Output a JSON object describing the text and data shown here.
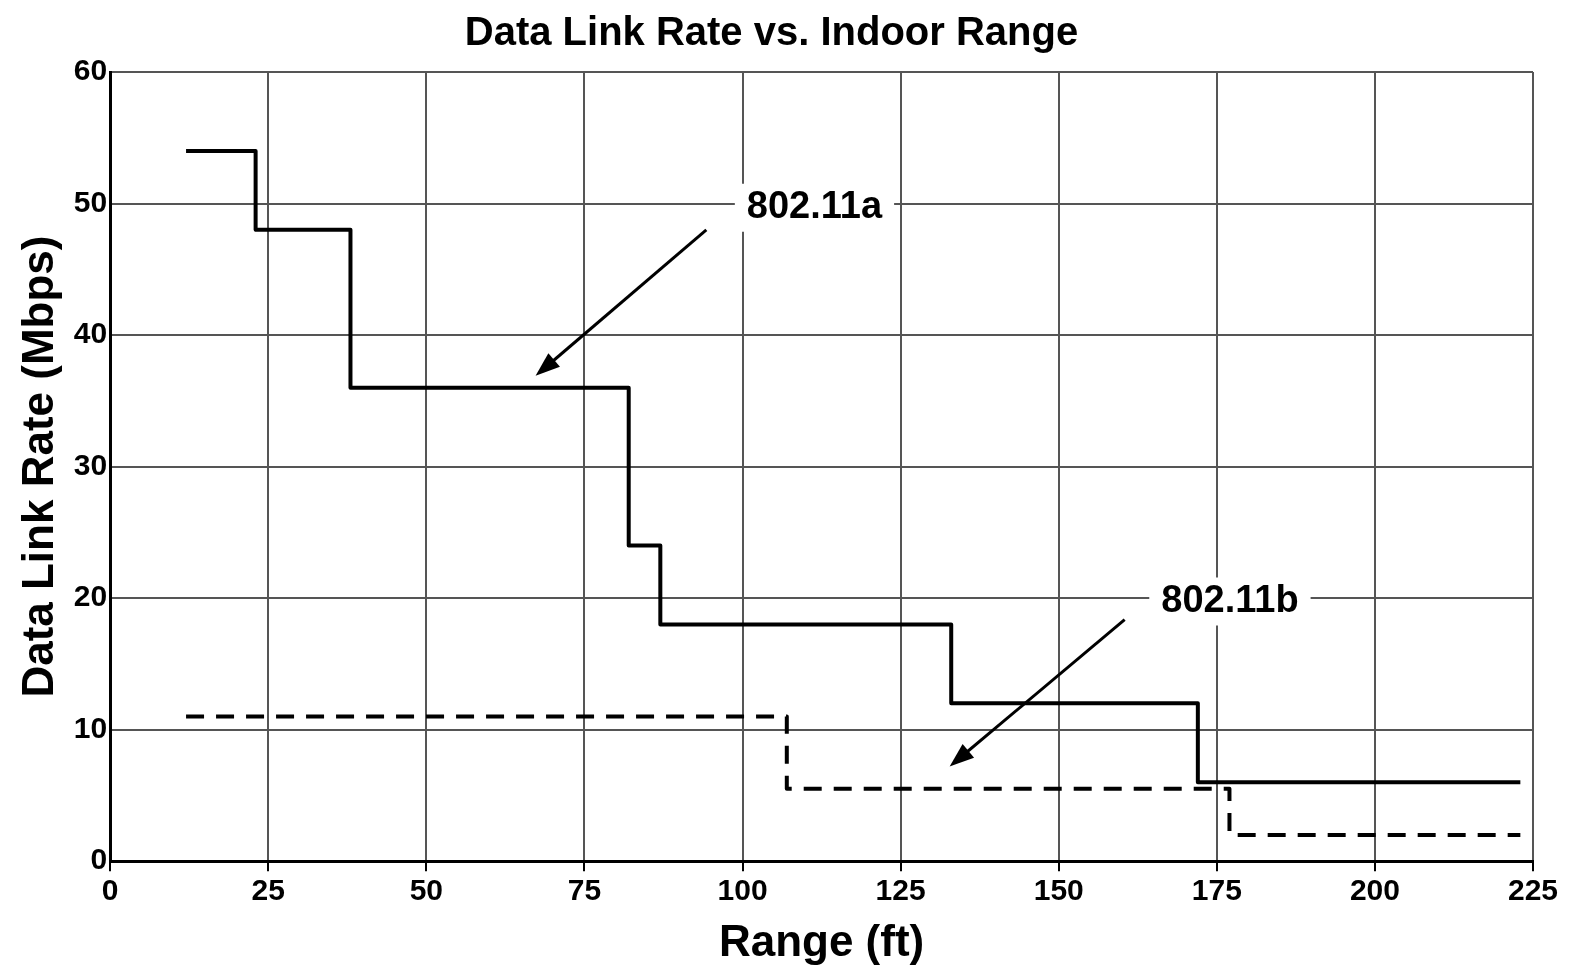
{
  "chart_data": {
    "type": "step",
    "title": "Data Link Rate vs. Indoor Range",
    "xlabel": "Range (ft)",
    "ylabel": "Data Link Rate (Mbps)",
    "xlim": [
      0,
      225
    ],
    "xticks": [
      0,
      25,
      50,
      75,
      100,
      125,
      150,
      175,
      200,
      225
    ],
    "ylim": [
      0,
      60
    ],
    "yticks": [
      0,
      10,
      20,
      30,
      40,
      50,
      60
    ],
    "grid": true,
    "legend": false,
    "marker": "none",
    "series": [
      {
        "color": "#000000",
        "line_style": "solid",
        "x": [
          12,
          23,
          38,
          82,
          87,
          133,
          172,
          223
        ],
        "values": [
          54,
          48,
          36,
          24,
          18,
          12,
          6,
          6
        ]
      },
      {
        "color": "#000000",
        "line_style": "dashed",
        "x": [
          12,
          107,
          177,
          223
        ],
        "values": [
          11,
          5.5,
          2,
          2
        ]
      }
    ],
    "annotations": [
      "802.11a",
      "802.11b"
    ]
  }
}
